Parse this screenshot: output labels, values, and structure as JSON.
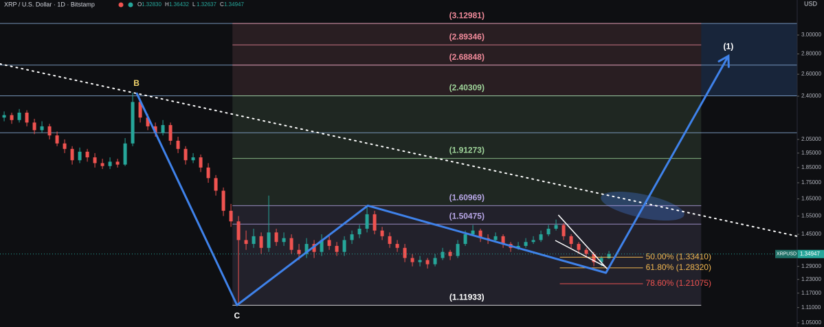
{
  "chart_data": {
    "type": "candlestick",
    "header": {
      "title": "XRP / U.S. Dollar · 1D · Bitstamp",
      "ohlc": [
        {
          "key": "O",
          "value": "1.32830"
        },
        {
          "key": "H",
          "value": "1.36432"
        },
        {
          "key": "L",
          "value": "1.32637"
        },
        {
          "key": "C",
          "value": "1.34947"
        }
      ]
    },
    "currency": "USD",
    "log_scale": true,
    "xlim": [
      -0.55,
      104.9
    ],
    "ylim": [
      1.034,
      3.409
    ],
    "yticks": [
      {
        "value": 3,
        "label": "3.00000"
      },
      {
        "value": 2.8,
        "label": "2.80000"
      },
      {
        "value": 2.6,
        "label": "2.60000"
      },
      {
        "value": 2.4,
        "label": "2.40000"
      },
      {
        "value": 2.05,
        "label": "2.05000"
      },
      {
        "value": 1.95,
        "label": "1.95000"
      },
      {
        "value": 1.85,
        "label": "1.85000"
      },
      {
        "value": 1.75,
        "label": "1.75000"
      },
      {
        "value": 1.65,
        "label": "1.65000"
      },
      {
        "value": 1.55,
        "label": "1.55000"
      },
      {
        "value": 1.45,
        "label": "1.45000"
      },
      {
        "value": 1.29,
        "label": "1.29000"
      },
      {
        "value": 1.23,
        "label": "1.23000"
      },
      {
        "value": 1.17,
        "label": "1.17000"
      },
      {
        "value": 1.11,
        "label": "1.11000"
      },
      {
        "value": 1.05,
        "label": "1.05000"
      }
    ],
    "up_color": "#26a69a",
    "down_color": "#ef5350",
    "ohlc": [
      [
        2.22,
        2.27,
        2.19,
        2.24
      ],
      [
        2.24,
        2.26,
        2.17,
        2.2
      ],
      [
        2.2,
        2.29,
        2.18,
        2.26
      ],
      [
        2.26,
        2.28,
        2.15,
        2.18
      ],
      [
        2.18,
        2.21,
        2.09,
        2.12
      ],
      [
        2.12,
        2.19,
        2.1,
        2.15
      ],
      [
        2.15,
        2.17,
        2.05,
        2.08
      ],
      [
        2.08,
        2.11,
        2.0,
        2.02
      ],
      [
        2.02,
        2.05,
        1.95,
        1.98
      ],
      [
        1.98,
        2.0,
        1.87,
        1.9
      ],
      [
        1.9,
        1.99,
        1.88,
        1.96
      ],
      [
        1.96,
        1.98,
        1.89,
        1.92
      ],
      [
        1.92,
        1.95,
        1.85,
        1.88
      ],
      [
        1.88,
        1.91,
        1.84,
        1.86
      ],
      [
        1.86,
        1.92,
        1.84,
        1.89
      ],
      [
        1.89,
        1.91,
        1.85,
        1.87
      ],
      [
        1.87,
        2.06,
        1.86,
        2.02
      ],
      [
        2.02,
        2.43,
        2.0,
        2.35
      ],
      [
        2.35,
        2.38,
        2.18,
        2.22
      ],
      [
        2.22,
        2.25,
        2.12,
        2.15
      ],
      [
        2.15,
        2.18,
        2.07,
        2.1
      ],
      [
        2.1,
        2.2,
        2.08,
        2.16
      ],
      [
        2.16,
        2.18,
        2.01,
        2.04
      ],
      [
        2.04,
        2.07,
        1.95,
        1.98
      ],
      [
        1.98,
        2.0,
        1.87,
        1.9
      ],
      [
        1.9,
        1.95,
        1.88,
        1.92
      ],
      [
        1.92,
        1.94,
        1.82,
        1.85
      ],
      [
        1.85,
        1.88,
        1.75,
        1.78
      ],
      [
        1.78,
        1.8,
        1.67,
        1.7
      ],
      [
        1.7,
        1.72,
        1.55,
        1.58
      ],
      [
        1.58,
        1.62,
        1.49,
        1.52
      ],
      [
        1.52,
        1.55,
        1.12,
        1.42
      ],
      [
        1.42,
        1.47,
        1.37,
        1.4
      ],
      [
        1.4,
        1.48,
        1.38,
        1.44
      ],
      [
        1.44,
        1.46,
        1.35,
        1.38
      ],
      [
        1.38,
        1.67,
        1.36,
        1.46
      ],
      [
        1.46,
        1.48,
        1.39,
        1.41
      ],
      [
        1.41,
        1.46,
        1.39,
        1.43
      ],
      [
        1.43,
        1.45,
        1.35,
        1.37
      ],
      [
        1.37,
        1.4,
        1.32,
        1.35
      ],
      [
        1.35,
        1.43,
        1.33,
        1.4
      ],
      [
        1.4,
        1.42,
        1.33,
        1.36
      ],
      [
        1.36,
        1.45,
        1.34,
        1.42
      ],
      [
        1.42,
        1.44,
        1.37,
        1.39
      ],
      [
        1.39,
        1.41,
        1.34,
        1.36
      ],
      [
        1.36,
        1.44,
        1.34,
        1.42
      ],
      [
        1.42,
        1.47,
        1.4,
        1.45
      ],
      [
        1.45,
        1.5,
        1.43,
        1.48
      ],
      [
        1.48,
        1.6,
        1.46,
        1.56
      ],
      [
        1.56,
        1.58,
        1.45,
        1.47
      ],
      [
        1.47,
        1.49,
        1.42,
        1.44
      ],
      [
        1.44,
        1.46,
        1.38,
        1.4
      ],
      [
        1.4,
        1.42,
        1.36,
        1.38
      ],
      [
        1.38,
        1.4,
        1.31,
        1.33
      ],
      [
        1.33,
        1.35,
        1.29,
        1.31
      ],
      [
        1.31,
        1.34,
        1.29,
        1.32
      ],
      [
        1.32,
        1.33,
        1.28,
        1.3
      ],
      [
        1.3,
        1.35,
        1.29,
        1.33
      ],
      [
        1.33,
        1.38,
        1.32,
        1.36
      ],
      [
        1.36,
        1.37,
        1.32,
        1.34
      ],
      [
        1.34,
        1.42,
        1.33,
        1.4
      ],
      [
        1.4,
        1.47,
        1.39,
        1.45
      ],
      [
        1.45,
        1.5,
        1.44,
        1.47
      ],
      [
        1.47,
        1.48,
        1.41,
        1.43
      ],
      [
        1.43,
        1.45,
        1.4,
        1.42
      ],
      [
        1.42,
        1.46,
        1.41,
        1.44
      ],
      [
        1.44,
        1.45,
        1.38,
        1.4
      ],
      [
        1.4,
        1.41,
        1.36,
        1.38
      ],
      [
        1.38,
        1.41,
        1.37,
        1.39
      ],
      [
        1.39,
        1.43,
        1.38,
        1.41
      ],
      [
        1.41,
        1.44,
        1.4,
        1.42
      ],
      [
        1.42,
        1.47,
        1.41,
        1.45
      ],
      [
        1.45,
        1.5,
        1.44,
        1.48
      ],
      [
        1.48,
        1.53,
        1.47,
        1.5
      ],
      [
        1.5,
        1.51,
        1.42,
        1.44
      ],
      [
        1.44,
        1.45,
        1.38,
        1.4
      ],
      [
        1.4,
        1.41,
        1.35,
        1.37
      ],
      [
        1.37,
        1.38,
        1.33,
        1.35
      ],
      [
        1.35,
        1.36,
        1.29,
        1.31
      ],
      [
        1.31,
        1.34,
        1.29,
        1.33
      ],
      [
        1.3283,
        1.36432,
        1.32637,
        1.34947
      ]
    ],
    "horizontal_lines": [
      3.12981,
      2.68848,
      2.40309,
      2.1
    ],
    "fib_extension": {
      "x": [
        30.2,
        92.2
      ],
      "levels": [
        {
          "value": 3.12981,
          "label": "(3.12981)",
          "color": "#f08a9a"
        },
        {
          "value": 2.89346,
          "label": "(2.89346)",
          "color": "#f08a9a"
        },
        {
          "value": 2.68848,
          "label": "(2.68848)",
          "color": "#f08a9a"
        },
        {
          "value": 2.40309,
          "label": "(2.40309)",
          "color": "#9fd49a"
        },
        {
          "value": 1.91273,
          "label": "(1.91273)",
          "color": "#9fd49a"
        },
        {
          "value": 1.60969,
          "label": "(1.60969)",
          "color": "#b7a6e6"
        },
        {
          "value": 1.50475,
          "label": "(1.50475)",
          "color": "#b7a6e6"
        },
        {
          "value": 1.11933,
          "label": "(1.11933)",
          "color": "#ffffff"
        }
      ]
    },
    "target_box": {
      "x": [
        92.2,
        104.9
      ],
      "price": [
        2.40309,
        3.12981
      ]
    },
    "retracement": {
      "x": [
        73.5,
        84.5
      ],
      "levels": [
        {
          "value": 1.3341,
          "label": "50.00% (1.33410)",
          "color": "#f2b750"
        },
        {
          "value": 1.2832,
          "label": "61.80% (1.28320)",
          "color": "#f2b750"
        },
        {
          "value": 1.21075,
          "label": "78.60% (1.21075)",
          "color": "#ef5350"
        }
      ]
    },
    "wave": {
      "x": [
        17.5,
        30.8,
        48.1,
        79.6,
        95.8
      ],
      "price": [
        2.43,
        1.12,
        1.61,
        1.26,
        2.78
      ],
      "labels": [
        "B",
        "C",
        null,
        null,
        "(1)"
      ],
      "label_colors": [
        "#f5d76e",
        "#ffffff",
        null,
        null,
        "#ffffff"
      ],
      "color": "#3f82ea"
    },
    "trendline": {
      "x": [
        -0.55,
        104.9
      ],
      "price": [
        2.7,
        1.44
      ]
    },
    "wedge": {
      "upper": {
        "x": [
          73.3,
          79.9
        ],
        "price": [
          1.556,
          1.273
        ]
      },
      "lower": {
        "x": [
          72.9,
          79.5
        ],
        "price": [
          1.418,
          1.289
        ]
      }
    },
    "last_price": {
      "symbol": "XRPUSD",
      "value": 1.34947
    }
  }
}
